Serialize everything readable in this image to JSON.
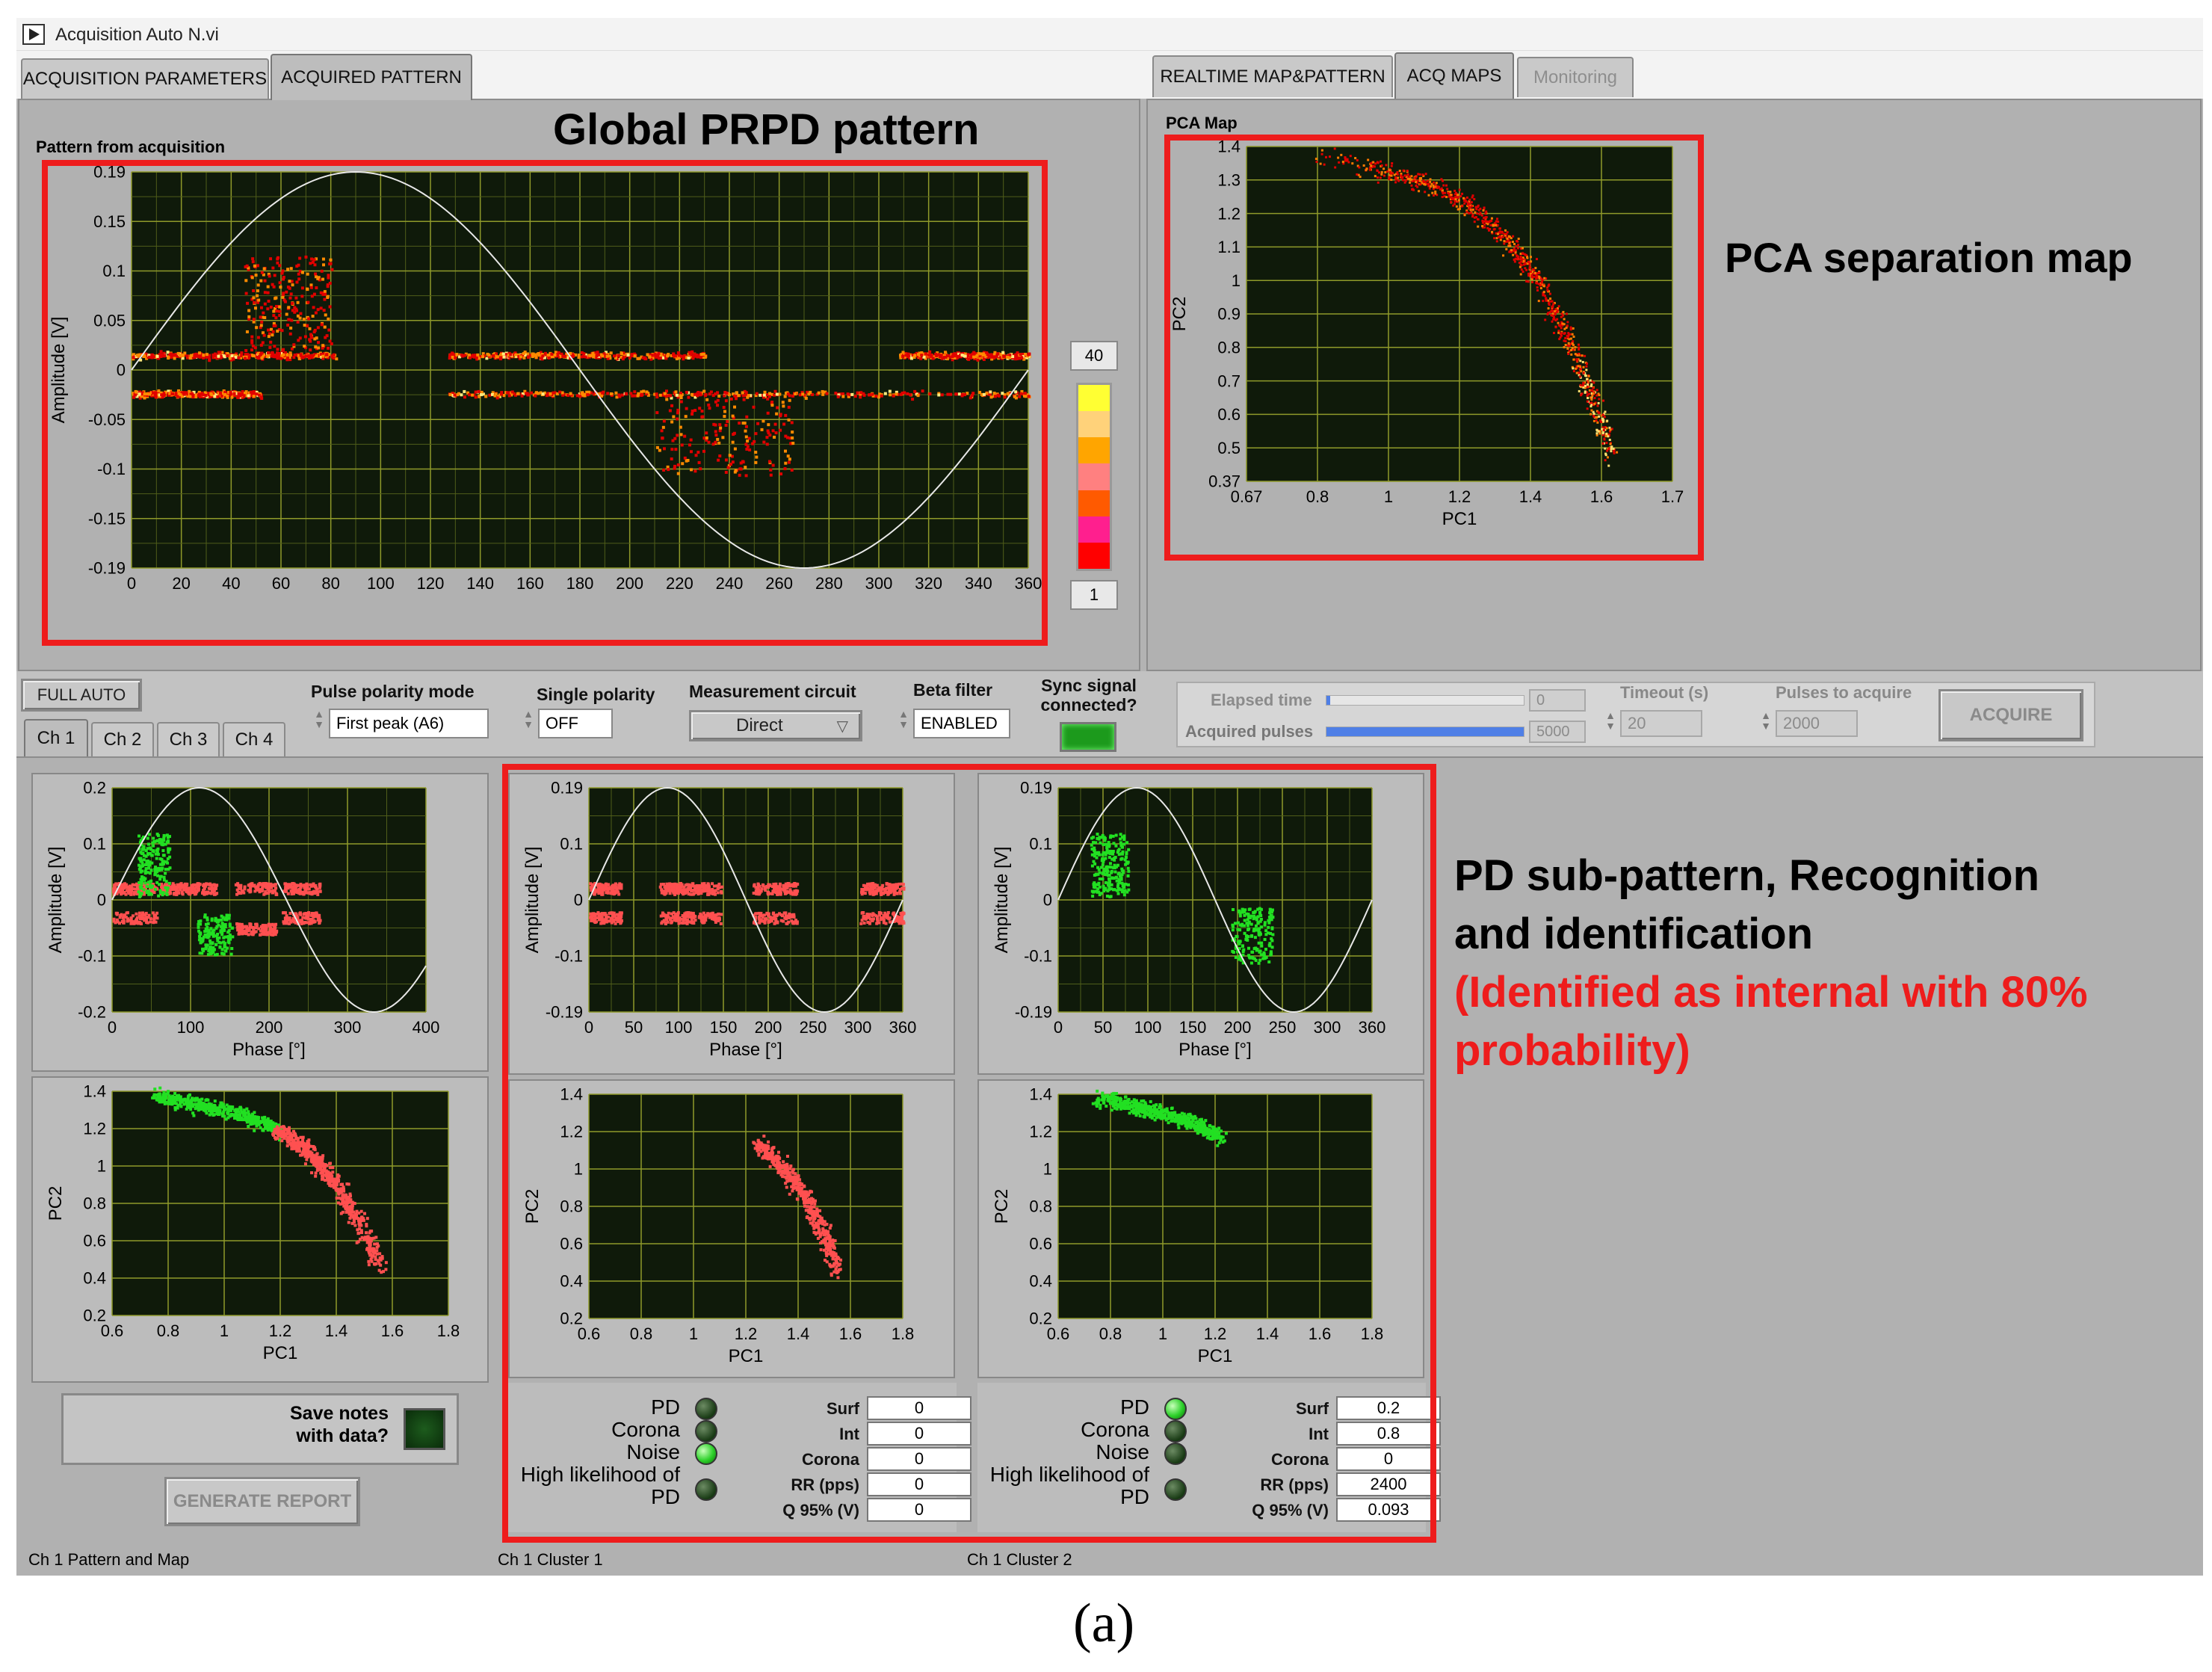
{
  "window": {
    "title": "Acquisition Auto N.vi"
  },
  "tabs_left": [
    {
      "label": "ACQUISITION PARAMETERS",
      "active": false
    },
    {
      "label": "ACQUIRED PATTERN",
      "active": true
    }
  ],
  "tabs_right": [
    {
      "label": "REALTIME MAP&PATTERN",
      "active": false
    },
    {
      "label": "ACQ MAPS",
      "active": true
    },
    {
      "label": "Monitoring",
      "active": false,
      "disabled": true
    }
  ],
  "global_pattern": {
    "label": "Pattern from acquisition",
    "annotation": "Global PRPD pattern",
    "ylabel": "Amplitude [V]",
    "yticks": [
      "0.19",
      "0.15",
      "0.1",
      "0.05",
      "0",
      "-0.05",
      "-0.1",
      "-0.15",
      "-0.19"
    ],
    "xticks": [
      "0",
      "20",
      "40",
      "60",
      "80",
      "100",
      "120",
      "140",
      "160",
      "180",
      "200",
      "220",
      "240",
      "260",
      "280",
      "300",
      "320",
      "340",
      "360"
    ],
    "colorbar": {
      "max": "40",
      "min": "1",
      "colors": [
        "#ffff33",
        "#ffd27a",
        "#ffa500",
        "#ff8080",
        "#ff5a00",
        "#ff1f8e",
        "#ff0000"
      ]
    }
  },
  "pca_map": {
    "label": "PCA Map",
    "annotation": "PCA separation map",
    "xlabel": "PC1",
    "ylabel": "PC2",
    "xticks": [
      "0.67",
      "0.8",
      "1",
      "1.2",
      "1.4",
      "1.6",
      "1.7"
    ],
    "yticks": [
      "1.4",
      "1.3",
      "1.2",
      "1.1",
      "1",
      "0.9",
      "0.8",
      "0.7",
      "0.6",
      "0.5",
      "0.37"
    ]
  },
  "controls": {
    "full_auto": "FULL AUTO",
    "pulse_polarity": {
      "label": "Pulse polarity mode",
      "value": "First peak (A6)"
    },
    "single_polarity": {
      "label": "Single polarity",
      "value": "OFF"
    },
    "measurement_circuit": {
      "label": "Measurement circuit",
      "value": "Direct"
    },
    "beta_filter": {
      "label": "Beta filter",
      "value": "ENABLED"
    },
    "sync_signal": {
      "label": "Sync signal connected?"
    },
    "elapsed_time": {
      "label": "Elapsed time",
      "value": "0",
      "progress": 0.02
    },
    "acquired_pulses": {
      "label": "Acquired pulses",
      "value": "5000",
      "progress": 1.0
    },
    "timeout": {
      "label": "Timeout (s)",
      "value": "20"
    },
    "pulses_to_acquire": {
      "label": "Pulses to acquire",
      "value": "2000"
    },
    "acquire": "ACQUIRE"
  },
  "channel_tabs": [
    "Ch 1",
    "Ch 2",
    "Ch 3",
    "Ch 4"
  ],
  "sub_pattern": {
    "ylabel": "Amplitude [V]",
    "xlabel": "Phase [°]",
    "pc_xlabel": "PC1",
    "pc_ylabel": "PC2",
    "ch1": {
      "xticks": [
        "0",
        "100",
        "200",
        "300",
        "400"
      ],
      "yticks": [
        "0.2",
        "0.1",
        "0",
        "-0.1",
        "-0.2"
      ],
      "pc_xticks": [
        "0.6",
        "0.8",
        "1",
        "1.2",
        "1.4",
        "1.6",
        "1.8"
      ],
      "pc_yticks": [
        "1.4",
        "1.2",
        "1",
        "0.8",
        "0.6",
        "0.4",
        "0.2"
      ]
    },
    "cluster": {
      "xticks": [
        "0",
        "50",
        "100",
        "150",
        "200",
        "250",
        "300",
        "360"
      ],
      "yticks": [
        "0.19",
        "0.1",
        "0",
        "-0.1",
        "-0.19"
      ],
      "pc_xticks": [
        "0.6",
        "0.8",
        "1",
        "1.2",
        "1.4",
        "1.6",
        "1.8"
      ],
      "pc_yticks": [
        "1.4",
        "1.2",
        "1",
        "0.8",
        "0.6",
        "0.4",
        "0.2"
      ]
    }
  },
  "ch1_panel": {
    "save_notes": "Save notes with data?",
    "generate_report": "GENERATE REPORT",
    "footer": "Ch 1 Pattern and Map"
  },
  "cluster1": {
    "footer": "Ch 1 Cluster 1",
    "indicators": [
      {
        "label": "PD",
        "on": false
      },
      {
        "label": "Corona",
        "on": false
      },
      {
        "label": "Noise",
        "on": true
      },
      {
        "label": "High likelihood of PD",
        "on": false
      }
    ],
    "values": [
      {
        "label": "Surf",
        "value": "0"
      },
      {
        "label": "Int",
        "value": "0"
      },
      {
        "label": "Corona",
        "value": "0"
      },
      {
        "label": "RR (pps)",
        "value": "0"
      },
      {
        "label": "Q 95% (V)",
        "value": "0"
      }
    ]
  },
  "cluster2": {
    "footer": "Ch 1 Cluster 2",
    "indicators": [
      {
        "label": "PD",
        "on": true
      },
      {
        "label": "Corona",
        "on": false
      },
      {
        "label": "Noise",
        "on": false
      },
      {
        "label": "High likelihood of PD",
        "on": false
      }
    ],
    "values": [
      {
        "label": "Surf",
        "value": "0.2"
      },
      {
        "label": "Int",
        "value": "0.8"
      },
      {
        "label": "Corona",
        "value": "0"
      },
      {
        "label": "RR (pps)",
        "value": "2400"
      },
      {
        "label": "Q 95% (V)",
        "value": "0.093"
      }
    ]
  },
  "annotations": {
    "sub_title_line1": "PD sub-pattern, Recognition",
    "sub_title_line2": "and identification",
    "result_line1": "(Identified as internal with 80%",
    "result_line2": "probability)",
    "colors": {
      "highlight": "#ee1c1c",
      "text": "#000000"
    }
  },
  "caption": "(a)"
}
